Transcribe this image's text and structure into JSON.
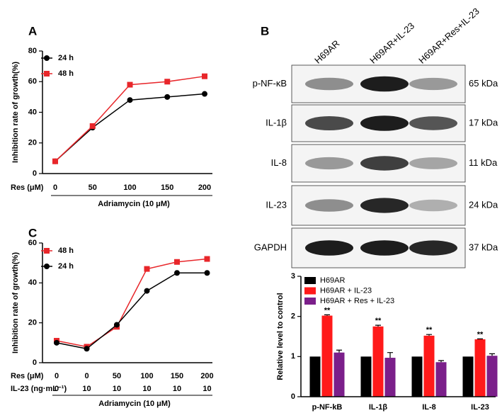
{
  "chart_data": [
    {
      "type": "line",
      "panel": "A",
      "y_label": "Inhibition rate of growth(%)",
      "x_label": "Res (μM)",
      "categories": [
        "0",
        "50",
        "100",
        "150",
        "200"
      ],
      "group_label": "Adriamycin (10 μM)",
      "ylim": [
        0,
        80
      ],
      "yticks": [
        0,
        20,
        40,
        60,
        80
      ],
      "series": [
        {
          "name": "24 h",
          "color": "#000000",
          "marker": "circle",
          "values": [
            8,
            30,
            48,
            50,
            52
          ]
        },
        {
          "name": "48 h",
          "color": "#e8262a",
          "marker": "square",
          "values": [
            8,
            31,
            58,
            60,
            63.5
          ]
        }
      ]
    },
    {
      "type": "line",
      "panel": "C",
      "y_label": "Inhibition rate of growth(%)",
      "x_label": "Res (μM)",
      "categories": [
        "0",
        "0",
        "50",
        "100",
        "150",
        "200"
      ],
      "x_row2": {
        "label": "IL-23 (ng·mL⁻¹)",
        "values": [
          "0",
          "10",
          "10",
          "10",
          "10",
          "10"
        ]
      },
      "group_label": "Adriamycin (10 μM)",
      "ylim": [
        0,
        60
      ],
      "yticks": [
        0,
        20,
        40,
        60
      ],
      "series": [
        {
          "name": "48 h",
          "color": "#e8262a",
          "marker": "square",
          "values": [
            11,
            8,
            18,
            47,
            50.5,
            52
          ]
        },
        {
          "name": "24 h",
          "color": "#000000",
          "marker": "circle",
          "values": [
            10,
            7,
            19,
            36,
            45,
            45
          ]
        }
      ]
    },
    {
      "type": "bar",
      "y_label": "Relative level to control",
      "categories": [
        "p-NF-kB",
        "IL-1β",
        "IL-8",
        "IL-23"
      ],
      "ylim": [
        0,
        3
      ],
      "yticks": [
        0,
        1,
        2,
        3
      ],
      "annotations": [
        "**",
        "**",
        "**",
        "**"
      ],
      "series": [
        {
          "name": "H69AR",
          "color": "#000000",
          "values": [
            1,
            1,
            1,
            1
          ],
          "errors": [
            0,
            0,
            0,
            0
          ]
        },
        {
          "name": "H69AR + IL-23",
          "color": "#ff1a1a",
          "values": [
            2.02,
            1.75,
            1.52,
            1.43
          ],
          "errors": [
            0.02,
            0.03,
            0.03,
            0.01
          ]
        },
        {
          "name": "H69AR + Res + IL-23",
          "color": "#7b1f8a",
          "values": [
            1.1,
            0.97,
            0.86,
            1.02
          ],
          "errors": [
            0.06,
            0.13,
            0.04,
            0.05
          ]
        }
      ]
    }
  ],
  "blot": {
    "panel": "B",
    "columns": [
      "H69AR",
      "H69AR+IL-23",
      "H69AR+Res+IL-23"
    ],
    "rows": [
      "p-NF-κB",
      "IL-1β",
      "IL-8",
      "IL-23",
      "GAPDH"
    ],
    "sizes": [
      "65 kDa",
      "17 kDa",
      "11 kDa",
      "24 kDa",
      "37 kDa"
    ]
  }
}
